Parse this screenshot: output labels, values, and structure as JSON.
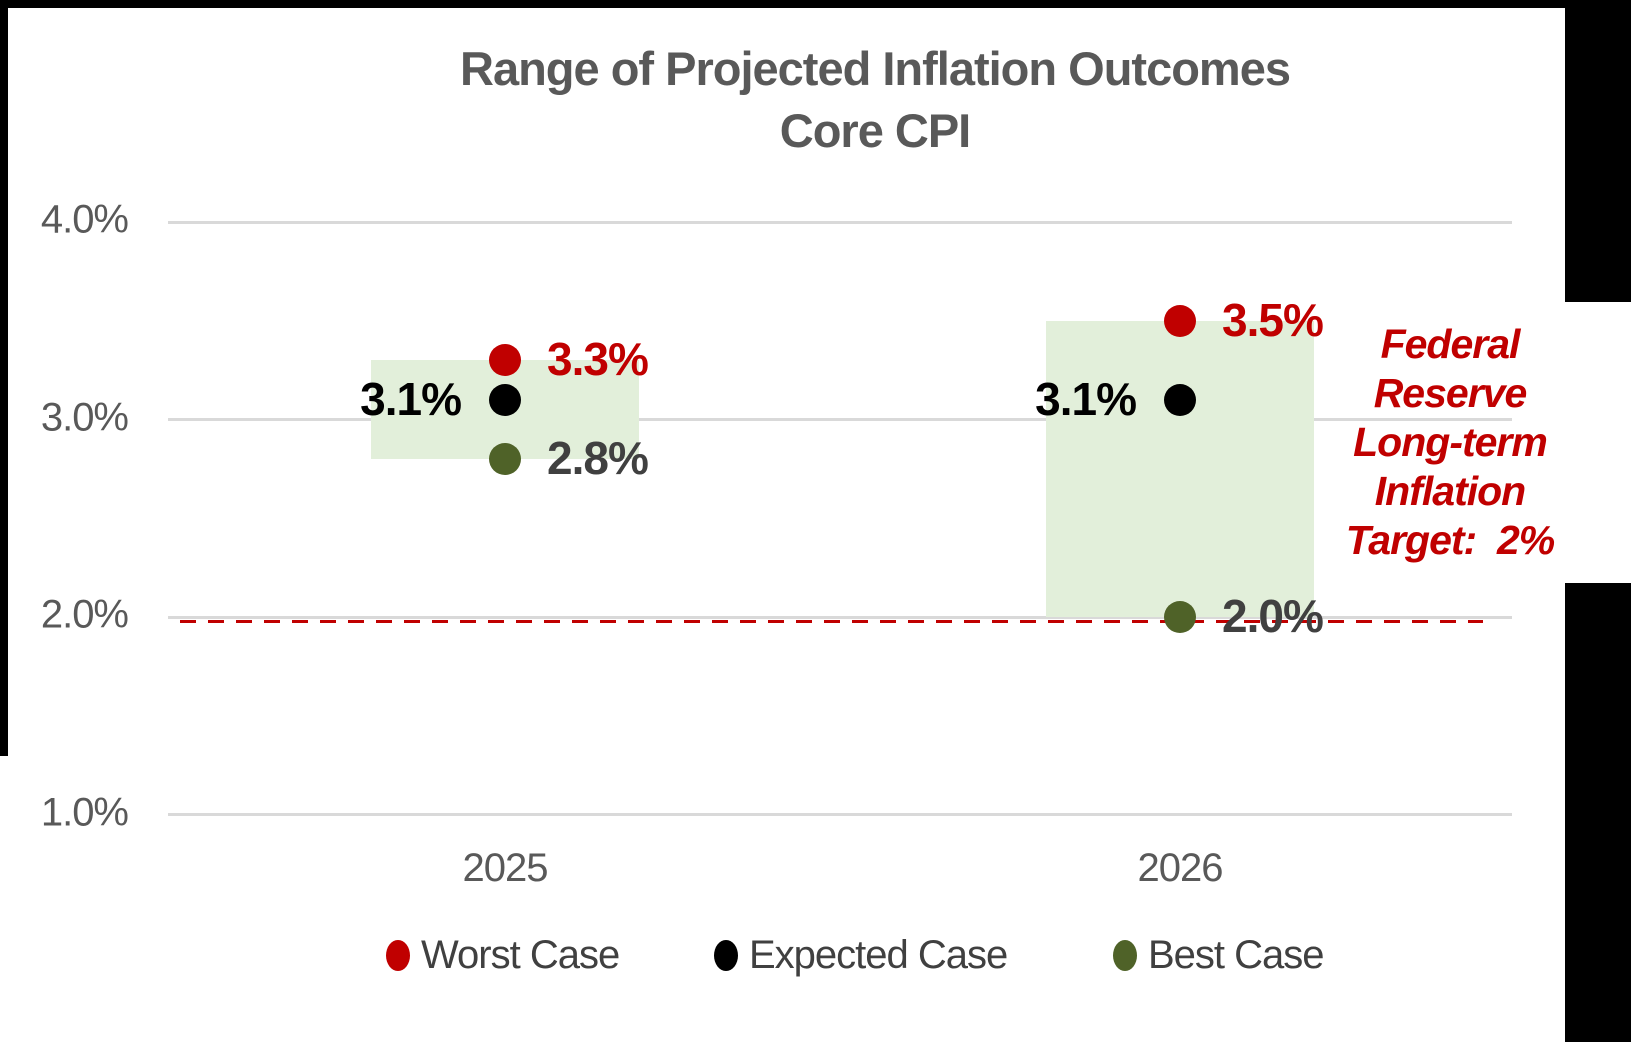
{
  "chart_data": {
    "type": "scatter",
    "title": "Range of Projected Inflation Outcomes",
    "subtitle": "Core CPI",
    "categories": [
      "2025",
      "2026"
    ],
    "series": [
      {
        "name": "Worst Case",
        "marker_color": "#C00000",
        "label_color": "#C00000",
        "label_side": "right",
        "values": [
          3.3,
          3.5
        ],
        "labels": [
          "3.3%",
          "3.5%"
        ]
      },
      {
        "name": "Expected Case",
        "marker_color": "#000000",
        "label_color": "#000000",
        "label_side": "left",
        "values": [
          3.1,
          3.1
        ],
        "labels": [
          "3.1%",
          "3.1%"
        ]
      },
      {
        "name": "Best Case",
        "marker_color": "#4F6228",
        "label_color": "#404040",
        "label_side": "right",
        "values": [
          2.8,
          2.0
        ],
        "labels": [
          "2.8%",
          "2.0%"
        ]
      }
    ],
    "y_axis": {
      "tick_labels": [
        "4.0%",
        "3.0%",
        "2.0%",
        "1.0%"
      ],
      "tick_values": [
        4.0,
        3.0,
        2.0,
        1.0
      ],
      "ylim": [
        0.5,
        4.3
      ],
      "grid": true
    },
    "range_boxes": [
      {
        "category": "2025",
        "from": 2.8,
        "to": 3.3,
        "fill": "#E2EFDA"
      },
      {
        "category": "2026",
        "from": 2.0,
        "to": 3.5,
        "fill": "#E2EFDA"
      }
    ],
    "reference_line": {
      "value": 2.0,
      "style": "dashed",
      "color": "#C00000"
    },
    "annotation": {
      "lines": [
        "Federal",
        "Reserve",
        "Long-term",
        "Inflation",
        "Target:  2%"
      ],
      "color": "#C00000"
    },
    "legend_position": "bottom",
    "colors": {
      "gridline": "#D9D9D9",
      "axis_text": "#595959",
      "title_text": "#595959",
      "legend_text": "#404040"
    }
  }
}
